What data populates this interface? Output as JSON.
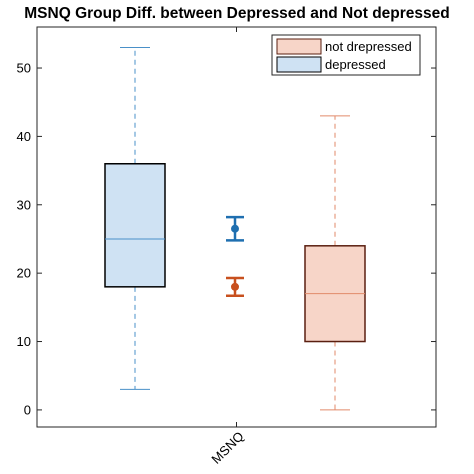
{
  "chart_data": {
    "type": "box",
    "title": "MSNQ Group Diff. between Depressed and Not depressed",
    "xlabel": "",
    "ylabel": "",
    "ylim": [
      -2.5,
      56
    ],
    "yticks": [
      0,
      10,
      20,
      30,
      40,
      50
    ],
    "categories": [
      "MSNQ"
    ],
    "grid": false,
    "legend_position": "top-right",
    "series": [
      {
        "name": "depressed",
        "min": 3,
        "q1": 18,
        "median": 25,
        "q3": 36,
        "max": 53,
        "mean": 26.5,
        "ci": [
          24.8,
          28.2
        ],
        "fill_color": "#cfe2f3",
        "edge_color": "#000000",
        "line_color": "#4a90c8",
        "marker_color": "#1f6fb0"
      },
      {
        "name": "not drepressed",
        "min": 0,
        "q1": 10,
        "median": 17,
        "q3": 24,
        "max": 43,
        "mean": 18,
        "ci": [
          16.7,
          19.3
        ],
        "fill_color": "#f7d5c8",
        "edge_color": "#5a1f10",
        "line_color": "#e28a6a",
        "marker_color": "#c8501e"
      }
    ],
    "legend_order": [
      "not drepressed",
      "depressed"
    ]
  }
}
